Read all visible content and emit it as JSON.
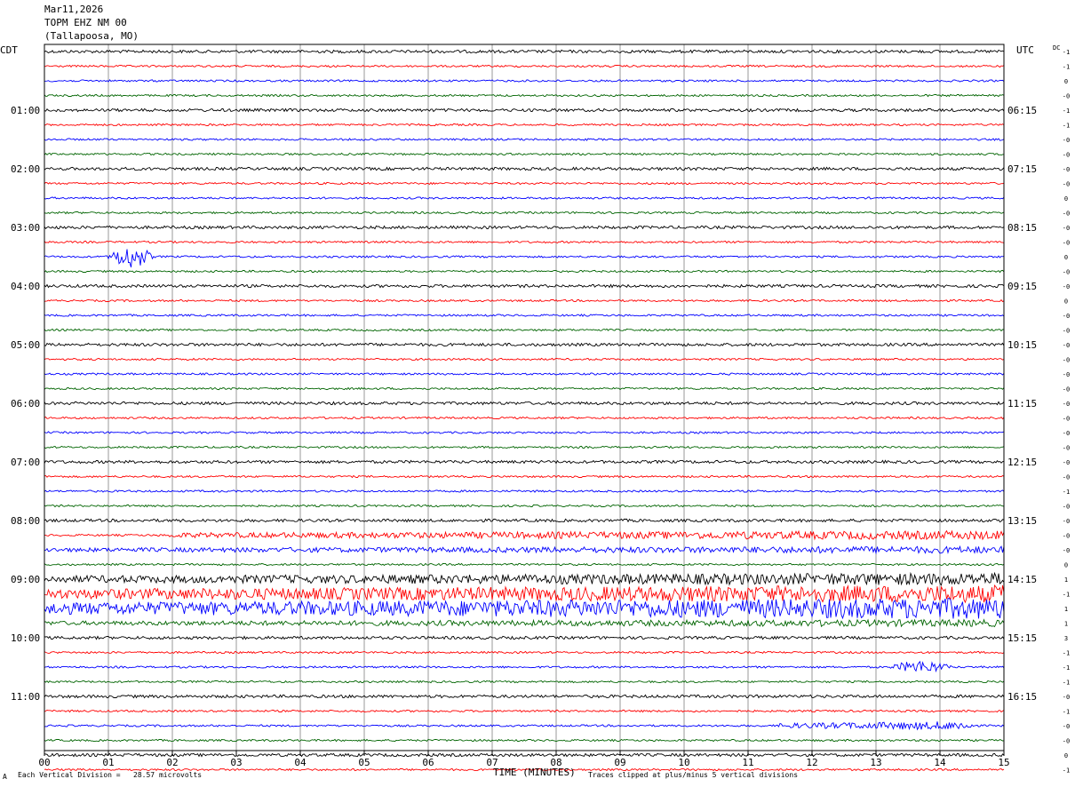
{
  "header": {
    "date": "Mar11,2026",
    "station": "TOPM EHZ NM 00",
    "location": "(Tallapoosa, MO)"
  },
  "left_tz": "CDT",
  "right_tz": "UTC",
  "dc_label": "DC",
  "footer": {
    "corner_mark": "A",
    "division_note": "Each Vertical Division =   28.57 microvolts",
    "clip_note": "Traces clipped at plus/minus 5 vertical divisions"
  },
  "colors": [
    "#000000",
    "#ff0000",
    "#0000ff",
    "#006400"
  ],
  "chart_data": {
    "type": "line",
    "xlabel": "TIME (MINUTES)",
    "xlim": [
      0,
      15
    ],
    "x_ticks": [
      "00",
      "01",
      "02",
      "03",
      "04",
      "05",
      "06",
      "07",
      "08",
      "09",
      "10",
      "11",
      "12",
      "13",
      "14",
      "15"
    ],
    "traces_per_hour": 4,
    "left_hour_labels": [
      "01:00",
      "02:00",
      "03:00",
      "04:00",
      "05:00",
      "06:00",
      "07:00",
      "08:00",
      "09:00",
      "10:00",
      "11:00"
    ],
    "right_hour_labels": [
      "06:15",
      "07:15",
      "08:15",
      "09:15",
      "10:15",
      "11:15",
      "12:15",
      "13:15",
      "14:15",
      "15:15",
      "16:15"
    ],
    "dc_offsets": [
      "-1",
      "-1",
      "0",
      "-0",
      "-1",
      "-1",
      "-0",
      "-0",
      "-0",
      "-0",
      "0",
      "-0",
      "-0",
      "-0",
      "0",
      "-0",
      "-0",
      "0",
      "-0",
      "-0",
      "-0",
      "-0",
      "-0",
      "-0",
      "-0",
      "-0",
      "-0",
      "-0",
      "-0",
      "-0",
      "-1",
      "-0",
      "-0",
      "-0",
      "-0",
      "0",
      "1",
      "-1",
      "1",
      "1",
      "3",
      "-1",
      "-1",
      "-1",
      "-0",
      "-1",
      "-0",
      "-0",
      "0",
      "-1"
    ],
    "series": [
      {
        "amplitude": [
          3,
          3,
          3,
          3
        ]
      },
      {
        "amplitude": [
          2,
          2,
          2,
          2
        ]
      },
      {
        "amplitude": [
          2,
          2,
          2,
          2
        ]
      },
      {
        "amplitude": [
          2,
          2,
          2,
          2
        ]
      }
    ],
    "events": [
      {
        "trace": 14,
        "x_min": [
          1.0,
          1.7
        ],
        "amplitude": 11
      },
      {
        "trace": 33,
        "x_min": [
          1.9,
          15
        ],
        "amplitude": 5
      },
      {
        "trace": 34,
        "x_min": [
          0,
          15
        ],
        "amplitude": 4
      },
      {
        "trace": 36,
        "x_min": [
          0,
          15
        ],
        "amplitude": 7
      },
      {
        "trace": 37,
        "x_min": [
          0,
          15
        ],
        "amplitude": 10
      },
      {
        "trace": 38,
        "x_min": [
          0,
          15
        ],
        "amplitude": 12
      },
      {
        "trace": 39,
        "x_min": [
          0,
          15
        ],
        "amplitude": 4
      },
      {
        "trace": 42,
        "x_min": [
          13.2,
          14.2
        ],
        "amplitude": 6
      },
      {
        "trace": 46,
        "x_min": [
          11.5,
          14.5
        ],
        "amplitude": 5
      }
    ]
  }
}
